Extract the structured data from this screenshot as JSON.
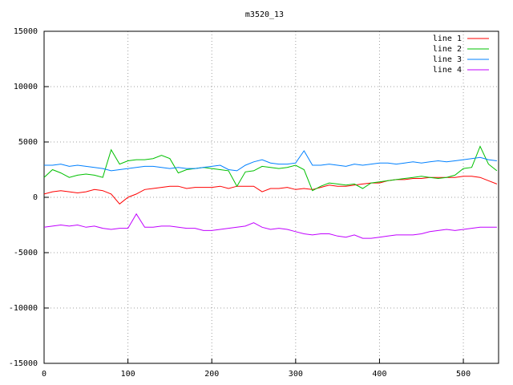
{
  "chart_data": {
    "type": "line",
    "title": "m3520_13",
    "x": [
      0,
      10,
      20,
      30,
      40,
      50,
      60,
      70,
      80,
      90,
      100,
      110,
      120,
      130,
      140,
      150,
      160,
      170,
      180,
      190,
      200,
      210,
      220,
      230,
      240,
      250,
      260,
      270,
      280,
      290,
      300,
      310,
      320,
      330,
      340,
      350,
      360,
      370,
      380,
      390,
      400,
      410,
      420,
      430,
      440,
      450,
      460,
      470,
      480,
      490,
      500,
      510,
      520,
      530,
      540
    ],
    "series": [
      {
        "name": "line 1",
        "color": "#ff0000",
        "values": [
          300,
          500,
          600,
          500,
          400,
          500,
          700,
          600,
          300,
          -600,
          0,
          300,
          700,
          800,
          900,
          1000,
          1000,
          800,
          900,
          900,
          900,
          1000,
          800,
          1000,
          1000,
          1000,
          500,
          800,
          800,
          900,
          700,
          800,
          700,
          900,
          1100,
          1000,
          1000,
          1100,
          1200,
          1300,
          1300,
          1500,
          1600,
          1600,
          1700,
          1700,
          1800,
          1800,
          1800,
          1800,
          1900,
          1900,
          1800,
          1500,
          1200
        ]
      },
      {
        "name": "line 2",
        "color": "#00c000",
        "values": [
          1800,
          2500,
          2200,
          1800,
          2000,
          2100,
          2000,
          1800,
          4300,
          3000,
          3300,
          3400,
          3400,
          3500,
          3800,
          3500,
          2200,
          2500,
          2600,
          2700,
          2600,
          2500,
          2400,
          1000,
          2300,
          2400,
          2800,
          2700,
          2600,
          2700,
          2900,
          2500,
          600,
          1000,
          1300,
          1200,
          1100,
          1200,
          800,
          1300,
          1400,
          1500,
          1600,
          1700,
          1800,
          1900,
          1800,
          1700,
          1800,
          2000,
          2600,
          2700,
          4600,
          3000,
          2400
        ]
      },
      {
        "name": "line 3",
        "color": "#0080ff",
        "values": [
          2900,
          2900,
          3000,
          2800,
          2900,
          2800,
          2700,
          2600,
          2400,
          2500,
          2600,
          2700,
          2800,
          2800,
          2700,
          2600,
          2700,
          2600,
          2600,
          2700,
          2800,
          2900,
          2500,
          2400,
          2900,
          3200,
          3400,
          3100,
          3000,
          3000,
          3100,
          4200,
          2900,
          2900,
          3000,
          2900,
          2800,
          3000,
          2900,
          3000,
          3100,
          3100,
          3000,
          3100,
          3200,
          3100,
          3200,
          3300,
          3200,
          3300,
          3400,
          3500,
          3600,
          3400,
          3300
        ]
      },
      {
        "name": "line 4",
        "color": "#c000ff",
        "values": [
          -2700,
          -2600,
          -2500,
          -2600,
          -2500,
          -2700,
          -2600,
          -2800,
          -2900,
          -2800,
          -2800,
          -1500,
          -2700,
          -2700,
          -2600,
          -2600,
          -2700,
          -2800,
          -2800,
          -3000,
          -3000,
          -2900,
          -2800,
          -2700,
          -2600,
          -2300,
          -2700,
          -2900,
          -2800,
          -2900,
          -3100,
          -3300,
          -3400,
          -3300,
          -3300,
          -3500,
          -3600,
          -3400,
          -3700,
          -3700,
          -3600,
          -3500,
          -3400,
          -3400,
          -3400,
          -3300,
          -3100,
          -3000,
          -2900,
          -3000,
          -2900,
          -2800,
          -2700,
          -2700,
          -2700
        ]
      }
    ],
    "xlim": [
      0,
      542
    ],
    "xticks": [
      0,
      100,
      200,
      300,
      400,
      500
    ],
    "ylim": [
      -15000,
      15000
    ],
    "yticks": [
      -15000,
      -10000,
      -5000,
      0,
      5000,
      10000,
      15000
    ],
    "grid": true,
    "legend": "top-right"
  }
}
